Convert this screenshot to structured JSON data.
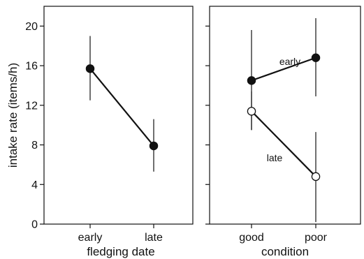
{
  "chart_data": [
    {
      "type": "line",
      "xlabel": "fledging date",
      "ylabel": "intake rate (items/h)",
      "categories": [
        "early",
        "late"
      ],
      "ylim": [
        0,
        22
      ],
      "yticks": [
        0,
        4,
        8,
        12,
        16,
        20
      ],
      "series": [
        {
          "name": "",
          "marker": "filled",
          "points": [
            {
              "x": "early",
              "y": 15.7,
              "err_low": 12.5,
              "err_high": 19.0
            },
            {
              "x": "late",
              "y": 7.9,
              "err_low": 5.3,
              "err_high": 10.6
            }
          ]
        }
      ]
    },
    {
      "type": "line",
      "xlabel": "condition",
      "ylabel": "",
      "categories": [
        "good",
        "poor"
      ],
      "ylim": [
        0,
        22
      ],
      "yticks": [
        0,
        4,
        8,
        12,
        16,
        20
      ],
      "series": [
        {
          "name": "early",
          "marker": "filled",
          "points": [
            {
              "x": "good",
              "y": 14.5,
              "err_low": 9.5,
              "err_high": 19.6
            },
            {
              "x": "poor",
              "y": 16.8,
              "err_low": 12.9,
              "err_high": 20.8
            }
          ]
        },
        {
          "name": "late",
          "marker": "open",
          "points": [
            {
              "x": "good",
              "y": 11.4,
              "err_low": 9.5,
              "err_high": 13.4
            },
            {
              "x": "poor",
              "y": 4.8,
              "err_low": 0.2,
              "err_high": 9.3
            }
          ]
        }
      ]
    }
  ]
}
